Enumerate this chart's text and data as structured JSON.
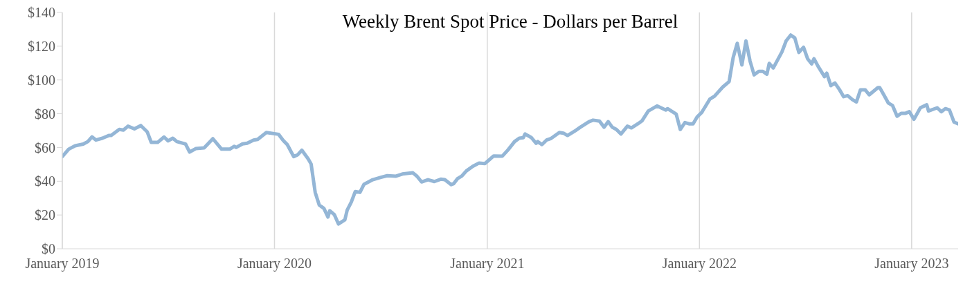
{
  "chart_data": {
    "type": "line",
    "title": "Weekly Brent Spot Price - Dollars per Barrel",
    "xlim": [
      "2019-01-01",
      "2023-03-22"
    ],
    "xticks": [
      {
        "value": "2019-01",
        "label": "January 2019"
      },
      {
        "value": "2020-01",
        "label": "January 2020"
      },
      {
        "value": "2021-01",
        "label": "January 2021"
      },
      {
        "value": "2022-01",
        "label": "January 2022"
      },
      {
        "value": "2023-01",
        "label": "January 2023"
      }
    ],
    "ylim": [
      0,
      140
    ],
    "yticks": [
      {
        "value": 0,
        "label": "$0"
      },
      {
        "value": 20,
        "label": "$20"
      },
      {
        "value": 40,
        "label": "$40"
      },
      {
        "value": 60,
        "label": "$60"
      },
      {
        "value": 80,
        "label": "$80"
      },
      {
        "value": 100,
        "label": "$100"
      },
      {
        "value": 120,
        "label": "$120"
      },
      {
        "value": 140,
        "label": "$140"
      }
    ],
    "grid": "x",
    "legend": false,
    "marker": "none",
    "line_style": "solid",
    "x": [
      "2019-01-01",
      "2019-01-12",
      "2019-01-23",
      "2019-02-06",
      "2019-02-14",
      "2019-02-21",
      "2019-02-28",
      "2019-03-11",
      "2019-03-22",
      "2019-03-26",
      "2019-04-09",
      "2019-04-16",
      "2019-04-24",
      "2019-05-05",
      "2019-05-16",
      "2019-05-27",
      "2019-06-03",
      "2019-06-14",
      "2019-06-25",
      "2019-07-02",
      "2019-07-10",
      "2019-07-17",
      "2019-08-01",
      "2019-08-08",
      "2019-08-19",
      "2019-09-02",
      "2019-09-17",
      "2019-10-02",
      "2019-10-16",
      "2019-10-24",
      "2019-10-27",
      "2019-11-07",
      "2019-11-15",
      "2019-11-26",
      "2019-12-03",
      "2019-12-18",
      "2020-01-08",
      "2020-01-16",
      "2020-01-23",
      "2020-02-03",
      "2020-02-10",
      "2020-02-17",
      "2020-02-28",
      "2020-03-04",
      "2020-03-11",
      "2020-03-18",
      "2020-03-26",
      "2020-04-02",
      "2020-04-05",
      "2020-04-13",
      "2020-04-20",
      "2020-05-01",
      "2020-05-05",
      "2020-05-12",
      "2020-05-19",
      "2020-05-27",
      "2020-06-03",
      "2020-06-18",
      "2020-07-02",
      "2020-07-13",
      "2020-07-28",
      "2020-08-08",
      "2020-08-26",
      "2020-09-02",
      "2020-09-10",
      "2020-09-21",
      "2020-10-02",
      "2020-10-13",
      "2020-10-20",
      "2020-10-31",
      "2020-11-04",
      "2020-11-11",
      "2020-11-18",
      "2020-11-26",
      "2020-12-07",
      "2020-12-18",
      "2020-12-28",
      "2021-01-05",
      "2021-01-12",
      "2021-01-27",
      "2021-02-06",
      "2021-02-17",
      "2021-02-25",
      "2021-03-04",
      "2021-03-07",
      "2021-03-18",
      "2021-03-26",
      "2021-03-29",
      "2021-04-05",
      "2021-04-13",
      "2021-04-20",
      "2021-05-05",
      "2021-05-12",
      "2021-05-19",
      "2021-06-03",
      "2021-06-10",
      "2021-06-25",
      "2021-07-02",
      "2021-07-13",
      "2021-07-21",
      "2021-07-28",
      "2021-08-04",
      "2021-08-11",
      "2021-08-19",
      "2021-08-30",
      "2021-09-06",
      "2021-09-17",
      "2021-09-24",
      "2021-10-05",
      "2021-10-20",
      "2021-11-04",
      "2021-11-07",
      "2021-11-22",
      "2021-11-29",
      "2021-12-07",
      "2021-12-14",
      "2021-12-21",
      "2021-12-28",
      "2022-01-05",
      "2022-01-19",
      "2022-01-27",
      "2022-02-10",
      "2022-02-21",
      "2022-02-28",
      "2022-03-07",
      "2022-03-15",
      "2022-03-22",
      "2022-03-29",
      "2022-04-05",
      "2022-04-13",
      "2022-04-20",
      "2022-04-27",
      "2022-05-01",
      "2022-05-08",
      "2022-05-23",
      "2022-05-30",
      "2022-06-07",
      "2022-06-14",
      "2022-06-21",
      "2022-06-29",
      "2022-07-06",
      "2022-07-13",
      "2022-07-17",
      "2022-07-24",
      "2022-08-04",
      "2022-08-08",
      "2022-08-15",
      "2022-08-22",
      "2022-08-30",
      "2022-09-06",
      "2022-09-13",
      "2022-09-21",
      "2022-09-28",
      "2022-10-05",
      "2022-10-13",
      "2022-10-20",
      "2022-11-04",
      "2022-11-07",
      "2022-11-15",
      "2022-11-22",
      "2022-11-29",
      "2022-12-07",
      "2022-12-14",
      "2022-12-21",
      "2022-12-28",
      "2023-01-05",
      "2023-01-16",
      "2023-01-27",
      "2023-01-30",
      "2023-02-14",
      "2023-02-21",
      "2023-02-28",
      "2023-03-07",
      "2023-03-15",
      "2023-03-22"
    ],
    "series": [
      {
        "color": "#94b6d6",
        "values": [
          54.6,
          59,
          61,
          62,
          63.5,
          66.3,
          64.4,
          65.5,
          67.1,
          67.1,
          70.7,
          70.3,
          72.6,
          71,
          73,
          69.3,
          63,
          63,
          66.2,
          63.9,
          65.5,
          63.5,
          62.1,
          57.3,
          59.4,
          59.8,
          65.2,
          59,
          59,
          60.7,
          60,
          62.1,
          62.5,
          64.4,
          64.8,
          68.9,
          67.8,
          64.2,
          61.7,
          54.6,
          55.7,
          58.4,
          53.2,
          50.2,
          33.4,
          25.9,
          23.9,
          18.8,
          22.5,
          20.2,
          14.7,
          17.1,
          22.9,
          27.6,
          33.9,
          33.4,
          38.2,
          40.9,
          42.3,
          43.3,
          43,
          44.3,
          45,
          43,
          39.6,
          40.9,
          39.8,
          41.2,
          40.9,
          38,
          38.5,
          41.6,
          43,
          46.1,
          48.8,
          50.8,
          50.5,
          52.9,
          55,
          54.9,
          58.7,
          63.5,
          65.5,
          65.8,
          68,
          65.8,
          62.5,
          63.5,
          61.7,
          64.4,
          65.2,
          68.9,
          68.5,
          67.1,
          70.3,
          72,
          75.3,
          76.2,
          75.6,
          72,
          75.3,
          72,
          70.7,
          68,
          72.6,
          71.6,
          74,
          75.7,
          81.6,
          84.6,
          82.2,
          83,
          79.8,
          70.7,
          74.8,
          74,
          74,
          78.1,
          80.8,
          88.7,
          90.4,
          95.8,
          99,
          113.3,
          121.7,
          108.9,
          123.1,
          111.2,
          103,
          105.1,
          105.1,
          103.4,
          109.8,
          107.1,
          116.7,
          123.1,
          126.6,
          124.9,
          116.3,
          119.4,
          112.6,
          109.5,
          112.6,
          108.1,
          102,
          104,
          96.6,
          98.2,
          94.2,
          90.1,
          90.7,
          88.4,
          87,
          94.2,
          94.2,
          91.2,
          95.5,
          95.5,
          90.7,
          86.3,
          84.9,
          78.5,
          80.2,
          80.2,
          81.2,
          76.7,
          83.5,
          85.3,
          81.6,
          83.5,
          81.2,
          83,
          82.2,
          75,
          74
        ]
      }
    ]
  }
}
